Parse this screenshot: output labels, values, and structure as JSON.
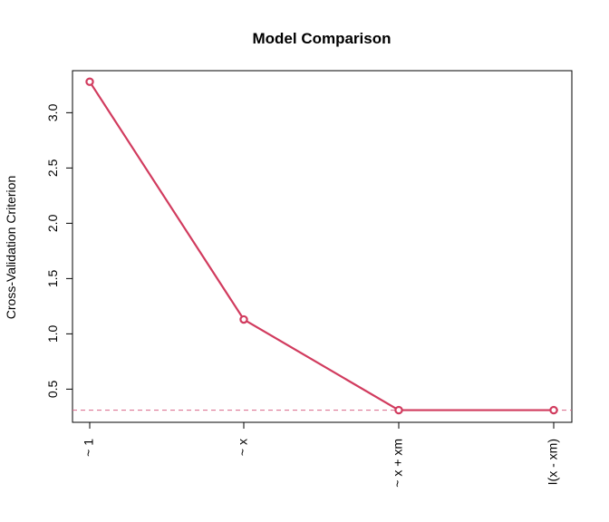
{
  "chart_data": {
    "type": "line",
    "title": "Model Comparison",
    "xlabel": "",
    "ylabel": "Cross-Validation Criterion",
    "categories": [
      "~ 1",
      "~ x",
      "~ x + xm",
      "I(x - xm)"
    ],
    "series": [
      {
        "values": [
          3.28,
          1.13,
          0.31,
          0.31
        ]
      }
    ],
    "yticks": [
      0.5,
      1.0,
      1.5,
      2.0,
      2.5,
      3.0
    ],
    "ytick_labels": [
      "0.5",
      "1.0",
      "1.5",
      "2.0",
      "2.5",
      "3.0"
    ],
    "ylim": [
      0.2,
      3.38
    ],
    "reference_line": {
      "y": 0.31,
      "style": "dashed"
    },
    "grid": false,
    "legend": "none",
    "colors": {
      "series": "#d13b5e",
      "reference": "#d9668a",
      "axis": "#000000"
    },
    "markers": "open-circle"
  }
}
